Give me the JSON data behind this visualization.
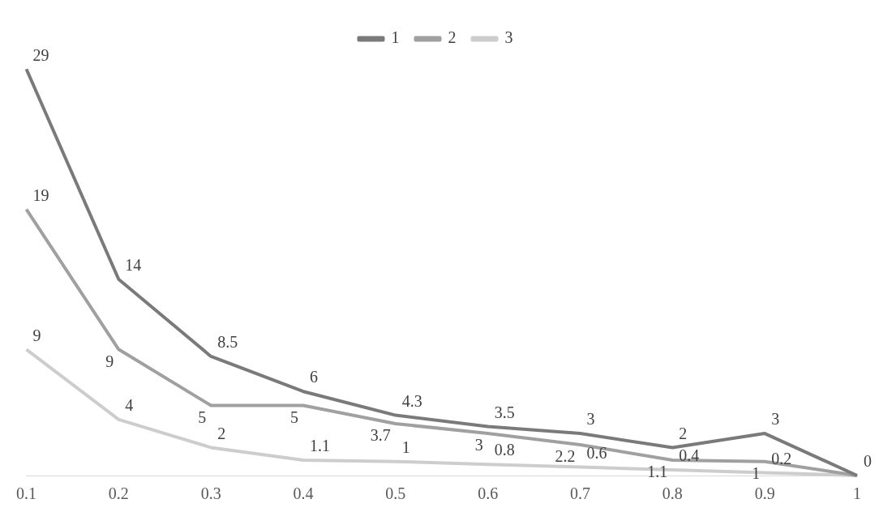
{
  "chart_data": {
    "type": "line",
    "categories": [
      "0.1",
      "0.2",
      "0.3",
      "0.4",
      "0.5",
      "0.6",
      "0.7",
      "0.8",
      "0.9",
      "1"
    ],
    "series": [
      {
        "name": "1",
        "color": "#7a7a7a",
        "values": [
          29,
          14,
          8.5,
          6,
          4.3,
          3.5,
          3,
          2,
          3,
          0
        ],
        "value_labels": [
          "29",
          "14",
          "8.5",
          "6",
          "4.3",
          "3.5",
          "3",
          "2",
          "3",
          "0"
        ]
      },
      {
        "name": "2",
        "color": "#a0a0a0",
        "values": [
          19,
          9,
          5,
          5,
          3.7,
          3,
          2.2,
          1.1,
          1,
          0
        ],
        "value_labels": [
          "19",
          "9",
          "5",
          "5",
          "3.7",
          "3",
          "2.2",
          "1.1",
          "1",
          null
        ]
      },
      {
        "name": "3",
        "color": "#cdcdcd",
        "values": [
          9,
          4,
          2,
          1.1,
          1,
          0.8,
          0.6,
          0.4,
          0.2,
          0
        ],
        "value_labels": [
          "9",
          "4",
          "2",
          "1.1",
          "1",
          "0.8",
          "0.6",
          "0.4",
          "0.2",
          null
        ]
      }
    ],
    "legend": "top",
    "grid": false,
    "marker": "none",
    "line_style": "solid",
    "tick_labels": "x"
  }
}
